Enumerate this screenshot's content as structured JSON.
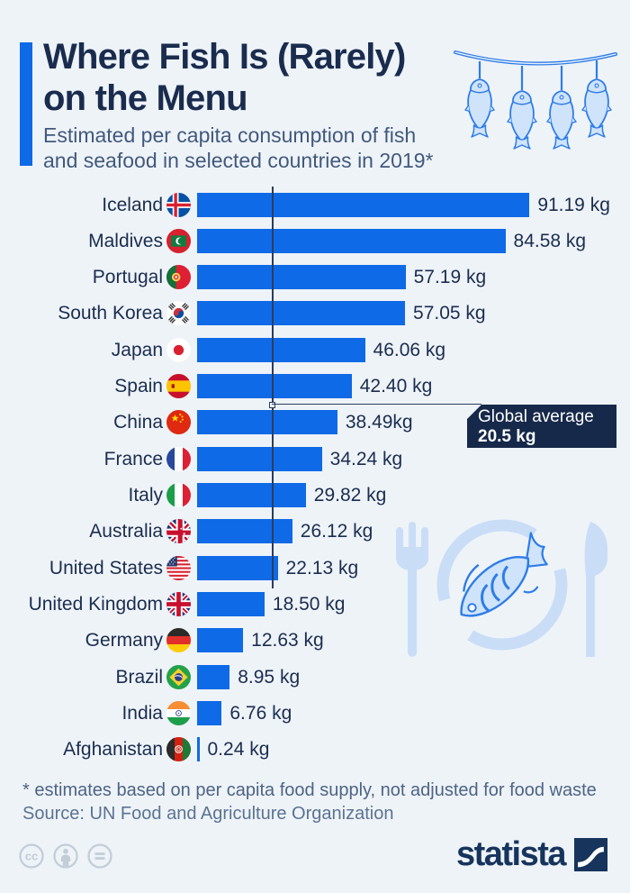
{
  "header": {
    "title_line1": "Where Fish Is (Rarely)",
    "title_line2": "on the Menu",
    "subtitle_line1": "Estimated per capita consumption of fish",
    "subtitle_line2": "and seafood in selected countries in 2019*"
  },
  "chart_data": {
    "type": "bar",
    "orientation": "horizontal",
    "title": "Where Fish Is (Rarely) on the Menu",
    "unit": "kg per capita",
    "categories": [
      "Iceland",
      "Maldives",
      "Portugal",
      "South Korea",
      "Japan",
      "Spain",
      "China",
      "France",
      "Italy",
      "Australia",
      "United States",
      "United Kingdom",
      "Germany",
      "Brazil",
      "India",
      "Afghanistan"
    ],
    "values": [
      91.19,
      84.58,
      57.19,
      57.05,
      46.06,
      42.4,
      38.49,
      34.24,
      29.82,
      26.12,
      22.13,
      18.5,
      12.63,
      8.95,
      6.76,
      0.24
    ],
    "value_labels": [
      "91.19 kg",
      "84.58 kg",
      "57.19 kg",
      "57.05 kg",
      "46.06 kg",
      "42.40 kg",
      "38.49kg",
      "34.24 kg",
      "29.82 kg",
      "26.12 kg",
      "22.13 kg",
      "18.50 kg",
      "12.63 kg",
      "8.95 kg",
      "6.76 kg",
      "0.24 kg"
    ],
    "flags": [
      "iceland",
      "maldives",
      "portugal",
      "south-korea",
      "japan",
      "spain",
      "china",
      "france",
      "italy",
      "australia",
      "united-states",
      "united-kingdom",
      "germany",
      "brazil",
      "india",
      "afghanistan"
    ],
    "global_average": {
      "label": "Global average",
      "value": 20.5,
      "value_label": "20.5 kg"
    },
    "xlim": [
      0,
      100
    ],
    "grid": false,
    "value_label_position": "end-of-bar"
  },
  "footer": {
    "note": "* estimates based on per capita food supply, not adjusted for food waste",
    "source": "Source: UN Food and Agriculture Organization"
  },
  "branding": {
    "logo_text": "statista"
  },
  "license_icons": [
    "cc",
    "by",
    "nd"
  ],
  "colors": {
    "background": "#eef3f8",
    "bar": "#0e6ae6",
    "accent": "#0e6ae6",
    "title_navy": "#1a2c4e",
    "subtitle_gray_blue": "#42597c",
    "callout_bg": "#16294a",
    "illustration_fill": "#c9ddf6",
    "illustration_stroke": "#2e7ce8",
    "license_gray": "#c3cdd7",
    "logo_navy": "#16345c"
  }
}
